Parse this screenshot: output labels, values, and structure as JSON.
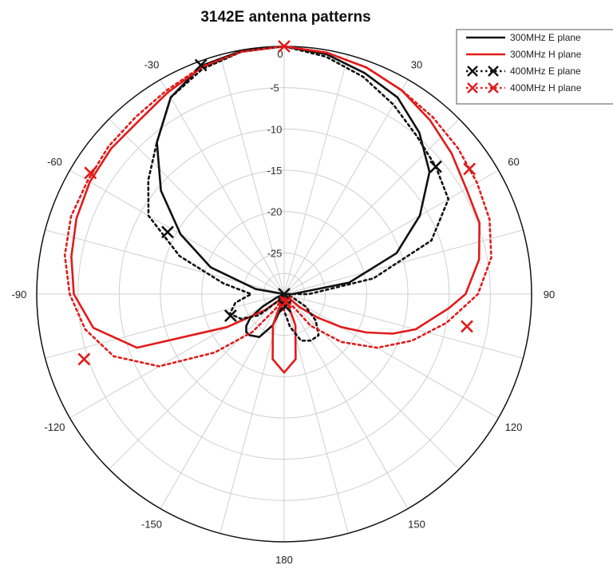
{
  "chart_data": {
    "type": "polar-line",
    "title": "3142E antenna patterns",
    "theta_direction": "clockwise",
    "theta_zero": "top",
    "angle_ticks": [
      0,
      30,
      60,
      90,
      120,
      150,
      180,
      -150,
      -120,
      -90,
      -60,
      -30
    ],
    "angle_tick_labels": [
      "0",
      "30",
      "60",
      "90",
      "120",
      "150",
      "180",
      "-150",
      "-120",
      "-90",
      "-60",
      "-30"
    ],
    "rlim": [
      -30,
      0
    ],
    "radial_ticks": [
      0,
      -5,
      -10,
      -15,
      -20,
      -25
    ],
    "radial_tick_labels": [
      "0",
      "-5",
      "-10",
      "-15",
      "-20",
      "-25"
    ],
    "grid": true,
    "legend_position": "top-right",
    "series": [
      {
        "name": "300MHz E plane",
        "color": "#111111",
        "style": "solid",
        "marker": "none",
        "theta": [
          0,
          10,
          20,
          30,
          40,
          50,
          60,
          70,
          80,
          90,
          95,
          100,
          105,
          110,
          115,
          120,
          125,
          130,
          135,
          140,
          150,
          160,
          170,
          180,
          -170,
          -160,
          -150,
          -140,
          -135,
          -130,
          -125,
          -120,
          -115,
          -110,
          -105,
          -100,
          -95,
          -90,
          -80,
          -70,
          -60,
          -50,
          -40,
          -30,
          -20,
          -10
        ],
        "r": [
          0,
          -0.5,
          -1.5,
          -2.5,
          -4.5,
          -7,
          -11,
          -15.5,
          -22,
          -29,
          -30,
          -30,
          -30,
          -30,
          -30,
          -30,
          -30,
          -30,
          -30,
          -30,
          -30,
          -30,
          -30,
          -30,
          -28.5,
          -26,
          -24,
          -23.5,
          -23.5,
          -24,
          -25,
          -27,
          -29,
          -30,
          -30,
          -30,
          -30,
          -30,
          -26.5,
          -20.5,
          -15.5,
          -10.5,
          -6,
          -2.5,
          -0.6,
          -0.1
        ]
      },
      {
        "name": "300MHz H plane",
        "color": "#e11b1b",
        "style": "solid",
        "marker": "none",
        "theta": [
          0,
          10,
          20,
          30,
          40,
          50,
          60,
          70,
          80,
          90,
          95,
          100,
          105,
          110,
          115,
          120,
          125,
          130,
          140,
          150,
          160,
          170,
          180,
          -170,
          -160,
          -150,
          -140,
          -130,
          -120,
          -110,
          -100,
          -90,
          -80,
          -70,
          -60,
          -50,
          -40,
          -30,
          -20,
          -10
        ],
        "r": [
          0,
          -0.3,
          -0.8,
          -1.5,
          -2.5,
          -3.5,
          -4.5,
          -4.8,
          -6,
          -8,
          -10,
          -12,
          -13.5,
          -16,
          -19,
          -22,
          -25,
          -27.5,
          -30,
          -30,
          -26,
          -22,
          -20.5,
          -22,
          -26,
          -30,
          -29,
          -27,
          -22,
          -11,
          -6.5,
          -4.5,
          -3.8,
          -3.2,
          -2.8,
          -2.6,
          -2.6,
          -1.8,
          -0.8,
          -0.2
        ]
      },
      {
        "name": "400MHz E plane",
        "color": "#111111",
        "style": "dotted",
        "marker": "x",
        "theta": [
          0,
          10,
          20,
          30,
          40,
          50,
          60,
          70,
          80,
          90,
          100,
          110,
          120,
          130,
          140,
          150,
          160,
          170,
          180,
          -170,
          -160,
          -150,
          -140,
          -130,
          -120,
          -110,
          -100,
          -90,
          -80,
          -70,
          -60,
          -50,
          -40,
          -30,
          -20,
          -10
        ],
        "r": [
          0,
          -0.8,
          -2,
          -3.5,
          -5,
          -6,
          -7,
          -11,
          -19,
          -27,
          -30,
          -29,
          -27,
          -25,
          -23.5,
          -23.5,
          -24,
          -26,
          -28,
          -30,
          -30,
          -30,
          -29,
          -26,
          -24,
          -23,
          -24,
          -26,
          -22.5,
          -16.5,
          -11,
          -8.5,
          -6,
          -2.5,
          -1,
          -0.2
        ],
        "marker_theta": [
          -20,
          50,
          98,
          -62,
          -112,
          175
        ],
        "marker_r": [
          -0.5,
          -6,
          -30,
          -14,
          -23,
          -28.5
        ]
      },
      {
        "name": "400MHz H plane",
        "color": "#e11b1b",
        "style": "dotted",
        "marker": "x",
        "theta": [
          0,
          10,
          20,
          30,
          40,
          50,
          60,
          70,
          80,
          90,
          100,
          110,
          120,
          130,
          140,
          150,
          160,
          170,
          180,
          -170,
          -160,
          -150,
          -140,
          -130,
          -120,
          -110,
          -100,
          -90,
          -80,
          -70,
          -60,
          -50,
          -40,
          -30,
          -20,
          -10
        ],
        "r": [
          0,
          -0.3,
          -0.8,
          -1.5,
          -2,
          -2.5,
          -3,
          -3.5,
          -4.5,
          -6.5,
          -10,
          -13.5,
          -17,
          -21,
          -25,
          -29,
          -30,
          -29,
          -28,
          -28.5,
          -30,
          -28,
          -24,
          -19,
          -12.5,
          -8,
          -5.5,
          -4,
          -3,
          -2.5,
          -2.5,
          -2.2,
          -2,
          -1.5,
          -0.7,
          -0.2
        ],
        "marker_theta": [
          0,
          56,
          100,
          -58,
          -108,
          168
        ],
        "marker_r": [
          0,
          -2.9,
          -7.5,
          -2.3,
          -4.5,
          -29
        ]
      }
    ]
  },
  "legend": {
    "items": [
      {
        "label": "300MHz E plane",
        "color": "#111111",
        "style": "solid",
        "marker": "none"
      },
      {
        "label": "300MHz H plane",
        "color": "#e11b1b",
        "style": "solid",
        "marker": "none"
      },
      {
        "label": "400MHz E plane",
        "color": "#111111",
        "style": "dotted",
        "marker": "x"
      },
      {
        "label": "400MHz H plane",
        "color": "#e11b1b",
        "style": "dotted",
        "marker": "x"
      }
    ]
  },
  "colors": {
    "grid": "#cfcfcf",
    "outer_circle": "#111111",
    "background": "#ffffff"
  }
}
